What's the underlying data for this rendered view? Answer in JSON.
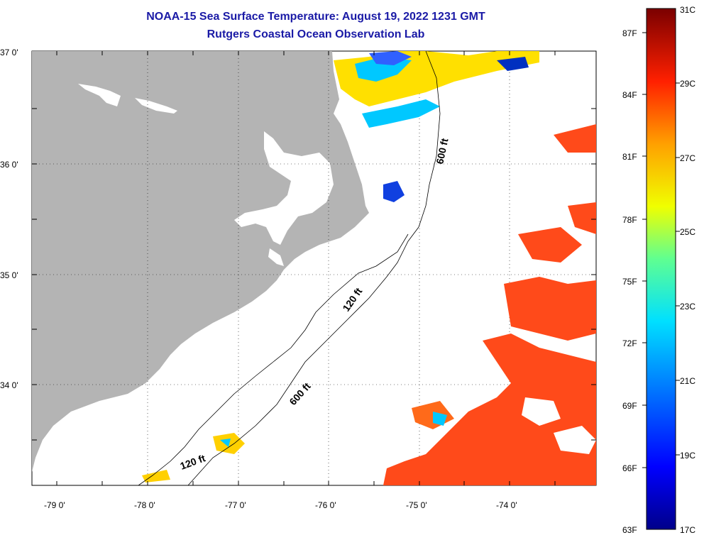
{
  "title": "NOAA-15 Sea Surface Temperature:  August 19, 2022 1231 GMT",
  "subtitle": "Rutgers Coastal Ocean Observation Lab",
  "lat_labels": [
    "37 0'",
    "36 0'",
    "35 0'",
    "34 0'"
  ],
  "lon_labels": [
    "-79 0'",
    "-78 0'",
    "-77 0'",
    "-76 0'",
    "-75 0'",
    "-74 0'"
  ],
  "depth_labels": [
    "600 ft",
    "120 ft",
    "600 ft",
    "120 ft"
  ],
  "colorbar": {
    "fahrenheit": [
      "87F",
      "84F",
      "81F",
      "78F",
      "75F",
      "72F",
      "69F",
      "66F",
      "63F"
    ],
    "celsius": [
      "31C",
      "29C",
      "27C",
      "25C",
      "23C",
      "21C",
      "19C",
      "17C"
    ]
  },
  "colors": {
    "land": "#b4b4b4",
    "title": "#1a1aa6",
    "sst_warm": "#ff4a1a"
  }
}
